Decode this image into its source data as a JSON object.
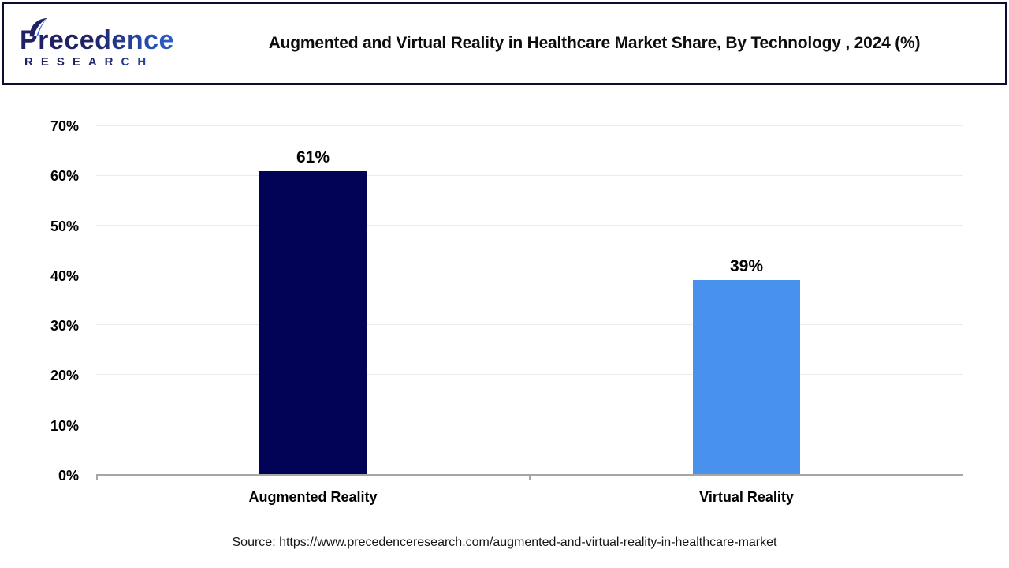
{
  "header": {
    "logo": {
      "brand": "Precedence",
      "sub": "RESEARCH",
      "color_navy": "#1f2165",
      "color_blue": "#2e6fe4"
    },
    "border_color": "#0c0c33",
    "title": "Augmented and Virtual Reality in Healthcare Market Share, By Technology , 2024 (%)"
  },
  "chart_data": {
    "type": "bar",
    "title": "Augmented and Virtual Reality in Healthcare Market Share, By Technology , 2024 (%)",
    "categories": [
      "Augmented Reality",
      "Virtual Reality"
    ],
    "values": [
      61,
      39
    ],
    "value_labels": [
      "61%",
      "39%"
    ],
    "bar_colors": [
      "#020357",
      "#4892ed"
    ],
    "xlabel": "",
    "ylabel": "",
    "ylim": [
      0,
      70
    ],
    "ytick_step": 10,
    "yticks": [
      "0%",
      "10%",
      "20%",
      "30%",
      "40%",
      "50%",
      "60%",
      "70%"
    ],
    "grid": true,
    "gridline_color": "#ebebeb",
    "axis_line_color": "#a6a6a6",
    "legend": false
  },
  "footer": {
    "source_text": "Source: https://www.precedenceresearch.com/augmented-and-virtual-reality-in-healthcare-market"
  }
}
